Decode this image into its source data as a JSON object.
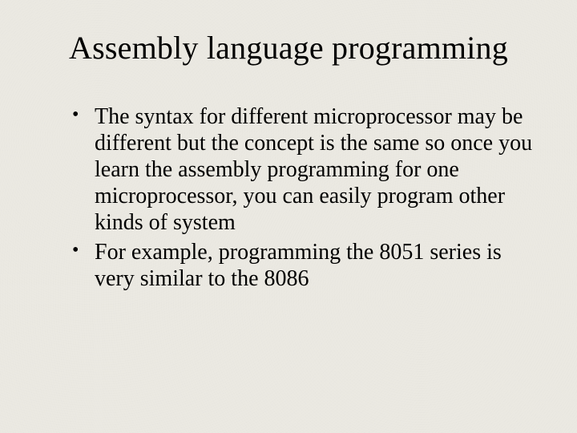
{
  "slide": {
    "background_color": "#ebe9e2",
    "text_color": "#000000",
    "font_family": "Times New Roman",
    "title": "Assembly language programming",
    "title_fontsize": 40,
    "bullet_fontsize": 28,
    "bullets": [
      "The syntax for different microprocessor may be different but the concept is the same so once you learn the assembly programming for one microprocessor, you can easily program other kinds of system",
      "For example, programming the 8051 series is very similar to the 8086"
    ]
  }
}
